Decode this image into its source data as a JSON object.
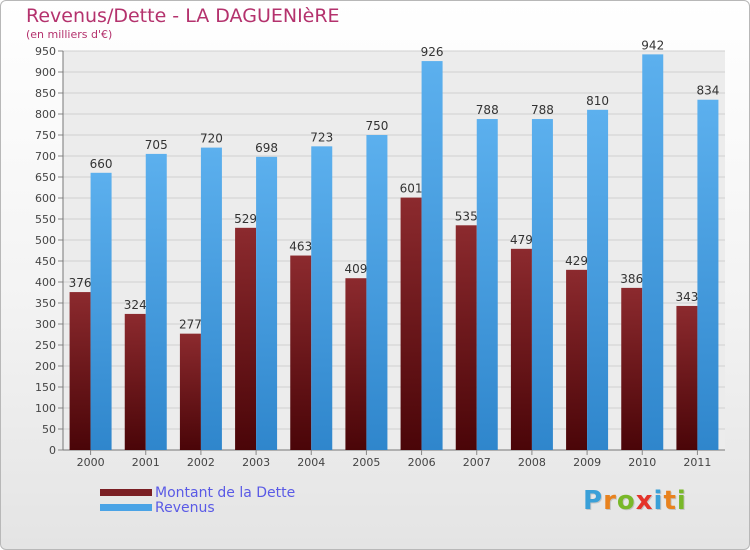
{
  "chart_data": {
    "type": "bar",
    "title": "Revenus/Dette - LA DAGUENIèRE",
    "subtitle": "(en milliers d'€)",
    "categories": [
      "2000",
      "2001",
      "2002",
      "2003",
      "2004",
      "2005",
      "2006",
      "2007",
      "2008",
      "2009",
      "2010",
      "2011"
    ],
    "series": [
      {
        "name": "Montant de la Dette",
        "color": "#7a1f24",
        "values": [
          376,
          324,
          277,
          529,
          463,
          409,
          601,
          535,
          479,
          429,
          386,
          343
        ]
      },
      {
        "name": "Revenus",
        "color": "#4aa3e6",
        "values": [
          660,
          705,
          720,
          698,
          723,
          750,
          926,
          788,
          788,
          810,
          942,
          834
        ]
      }
    ],
    "ylim": [
      0,
      950
    ],
    "ytick_step": 50,
    "grid": true,
    "legend_position": "bottom-left"
  },
  "logo": {
    "letters": [
      "P",
      "r",
      "o",
      "x",
      "i",
      "t",
      "i"
    ],
    "colors": [
      "#3aa0d8",
      "#e8821e",
      "#79b829",
      "#e4332a",
      "#3aa0d8",
      "#e8821e",
      "#79b829"
    ]
  }
}
